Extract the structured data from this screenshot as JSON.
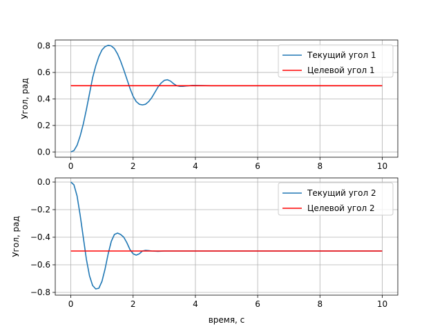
{
  "chart_data": [
    {
      "type": "line",
      "ylabel": "Угол, рад",
      "xlabel": "",
      "xlim": [
        -0.5,
        10.5
      ],
      "ylim": [
        -0.04,
        0.845
      ],
      "xticks": [
        0,
        2,
        4,
        6,
        8,
        10
      ],
      "xtick_labels": [
        "0",
        "2",
        "4",
        "6",
        "8",
        "10"
      ],
      "yticks": [
        0.0,
        0.2,
        0.4,
        0.6,
        0.8
      ],
      "ytick_labels": [
        "0.0",
        "0.2",
        "0.4",
        "0.6",
        "0.8"
      ],
      "grid": true,
      "legend_position": "top-right",
      "series": [
        {
          "name": "Текущий угол 1",
          "color": "#1f77b4",
          "x": [
            0,
            0.1,
            0.2,
            0.3,
            0.4,
            0.5,
            0.6,
            0.7,
            0.8,
            0.9,
            1.0,
            1.1,
            1.2,
            1.3,
            1.4,
            1.5,
            1.6,
            1.7,
            1.8,
            1.9,
            2.0,
            2.1,
            2.2,
            2.3,
            2.4,
            2.5,
            2.6,
            2.7,
            2.8,
            2.9,
            3.0,
            3.1,
            3.2,
            3.3,
            3.4,
            3.5,
            3.6,
            3.7,
            3.8,
            3.9,
            4.0,
            4.5,
            5.0,
            6.0,
            7.0,
            8.0,
            9.0,
            10.0
          ],
          "y": [
            0.0,
            0.01,
            0.05,
            0.12,
            0.21,
            0.32,
            0.44,
            0.56,
            0.65,
            0.72,
            0.77,
            0.795,
            0.805,
            0.8,
            0.78,
            0.74,
            0.685,
            0.62,
            0.55,
            0.48,
            0.42,
            0.38,
            0.36,
            0.355,
            0.36,
            0.38,
            0.41,
            0.45,
            0.49,
            0.52,
            0.54,
            0.545,
            0.535,
            0.515,
            0.5,
            0.495,
            0.495,
            0.498,
            0.5,
            0.502,
            0.502,
            0.5,
            0.5,
            0.5,
            0.5,
            0.5,
            0.5,
            0.5
          ]
        },
        {
          "name": "Целевой угол 1",
          "color": "#ff0000",
          "x": [
            0,
            10
          ],
          "y": [
            0.5,
            0.5
          ]
        }
      ]
    },
    {
      "type": "line",
      "ylabel": "Угол, рад",
      "xlabel": "время, с",
      "xlim": [
        -0.5,
        10.5
      ],
      "ylim": [
        -0.82,
        0.03
      ],
      "xticks": [
        0,
        2,
        4,
        6,
        8,
        10
      ],
      "xtick_labels": [
        "0",
        "2",
        "4",
        "6",
        "8",
        "10"
      ],
      "yticks": [
        0.0,
        -0.2,
        -0.4,
        -0.6,
        -0.8
      ],
      "ytick_labels": [
        "0.0",
        "−0.2",
        "−0.4",
        "−0.6",
        "−0.8"
      ],
      "grid": true,
      "legend_position": "top-right",
      "series": [
        {
          "name": "Текущий угол 2",
          "color": "#1f77b4",
          "x": [
            0,
            0.1,
            0.2,
            0.3,
            0.4,
            0.5,
            0.6,
            0.7,
            0.8,
            0.9,
            1.0,
            1.1,
            1.2,
            1.3,
            1.4,
            1.5,
            1.6,
            1.7,
            1.8,
            1.9,
            2.0,
            2.1,
            2.2,
            2.3,
            2.4,
            2.5,
            2.6,
            2.8,
            3.0,
            4.0,
            6.0,
            8.0,
            10.0
          ],
          "y": [
            0.0,
            -0.02,
            -0.1,
            -0.24,
            -0.4,
            -0.56,
            -0.68,
            -0.75,
            -0.775,
            -0.77,
            -0.72,
            -0.63,
            -0.52,
            -0.43,
            -0.38,
            -0.37,
            -0.38,
            -0.4,
            -0.44,
            -0.49,
            -0.52,
            -0.53,
            -0.52,
            -0.5,
            -0.495,
            -0.497,
            -0.5,
            -0.502,
            -0.5,
            -0.5,
            -0.5,
            -0.5,
            -0.5
          ]
        },
        {
          "name": "Целевой угол 2",
          "color": "#ff0000",
          "x": [
            0,
            10
          ],
          "y": [
            -0.5,
            -0.5
          ]
        }
      ]
    }
  ]
}
